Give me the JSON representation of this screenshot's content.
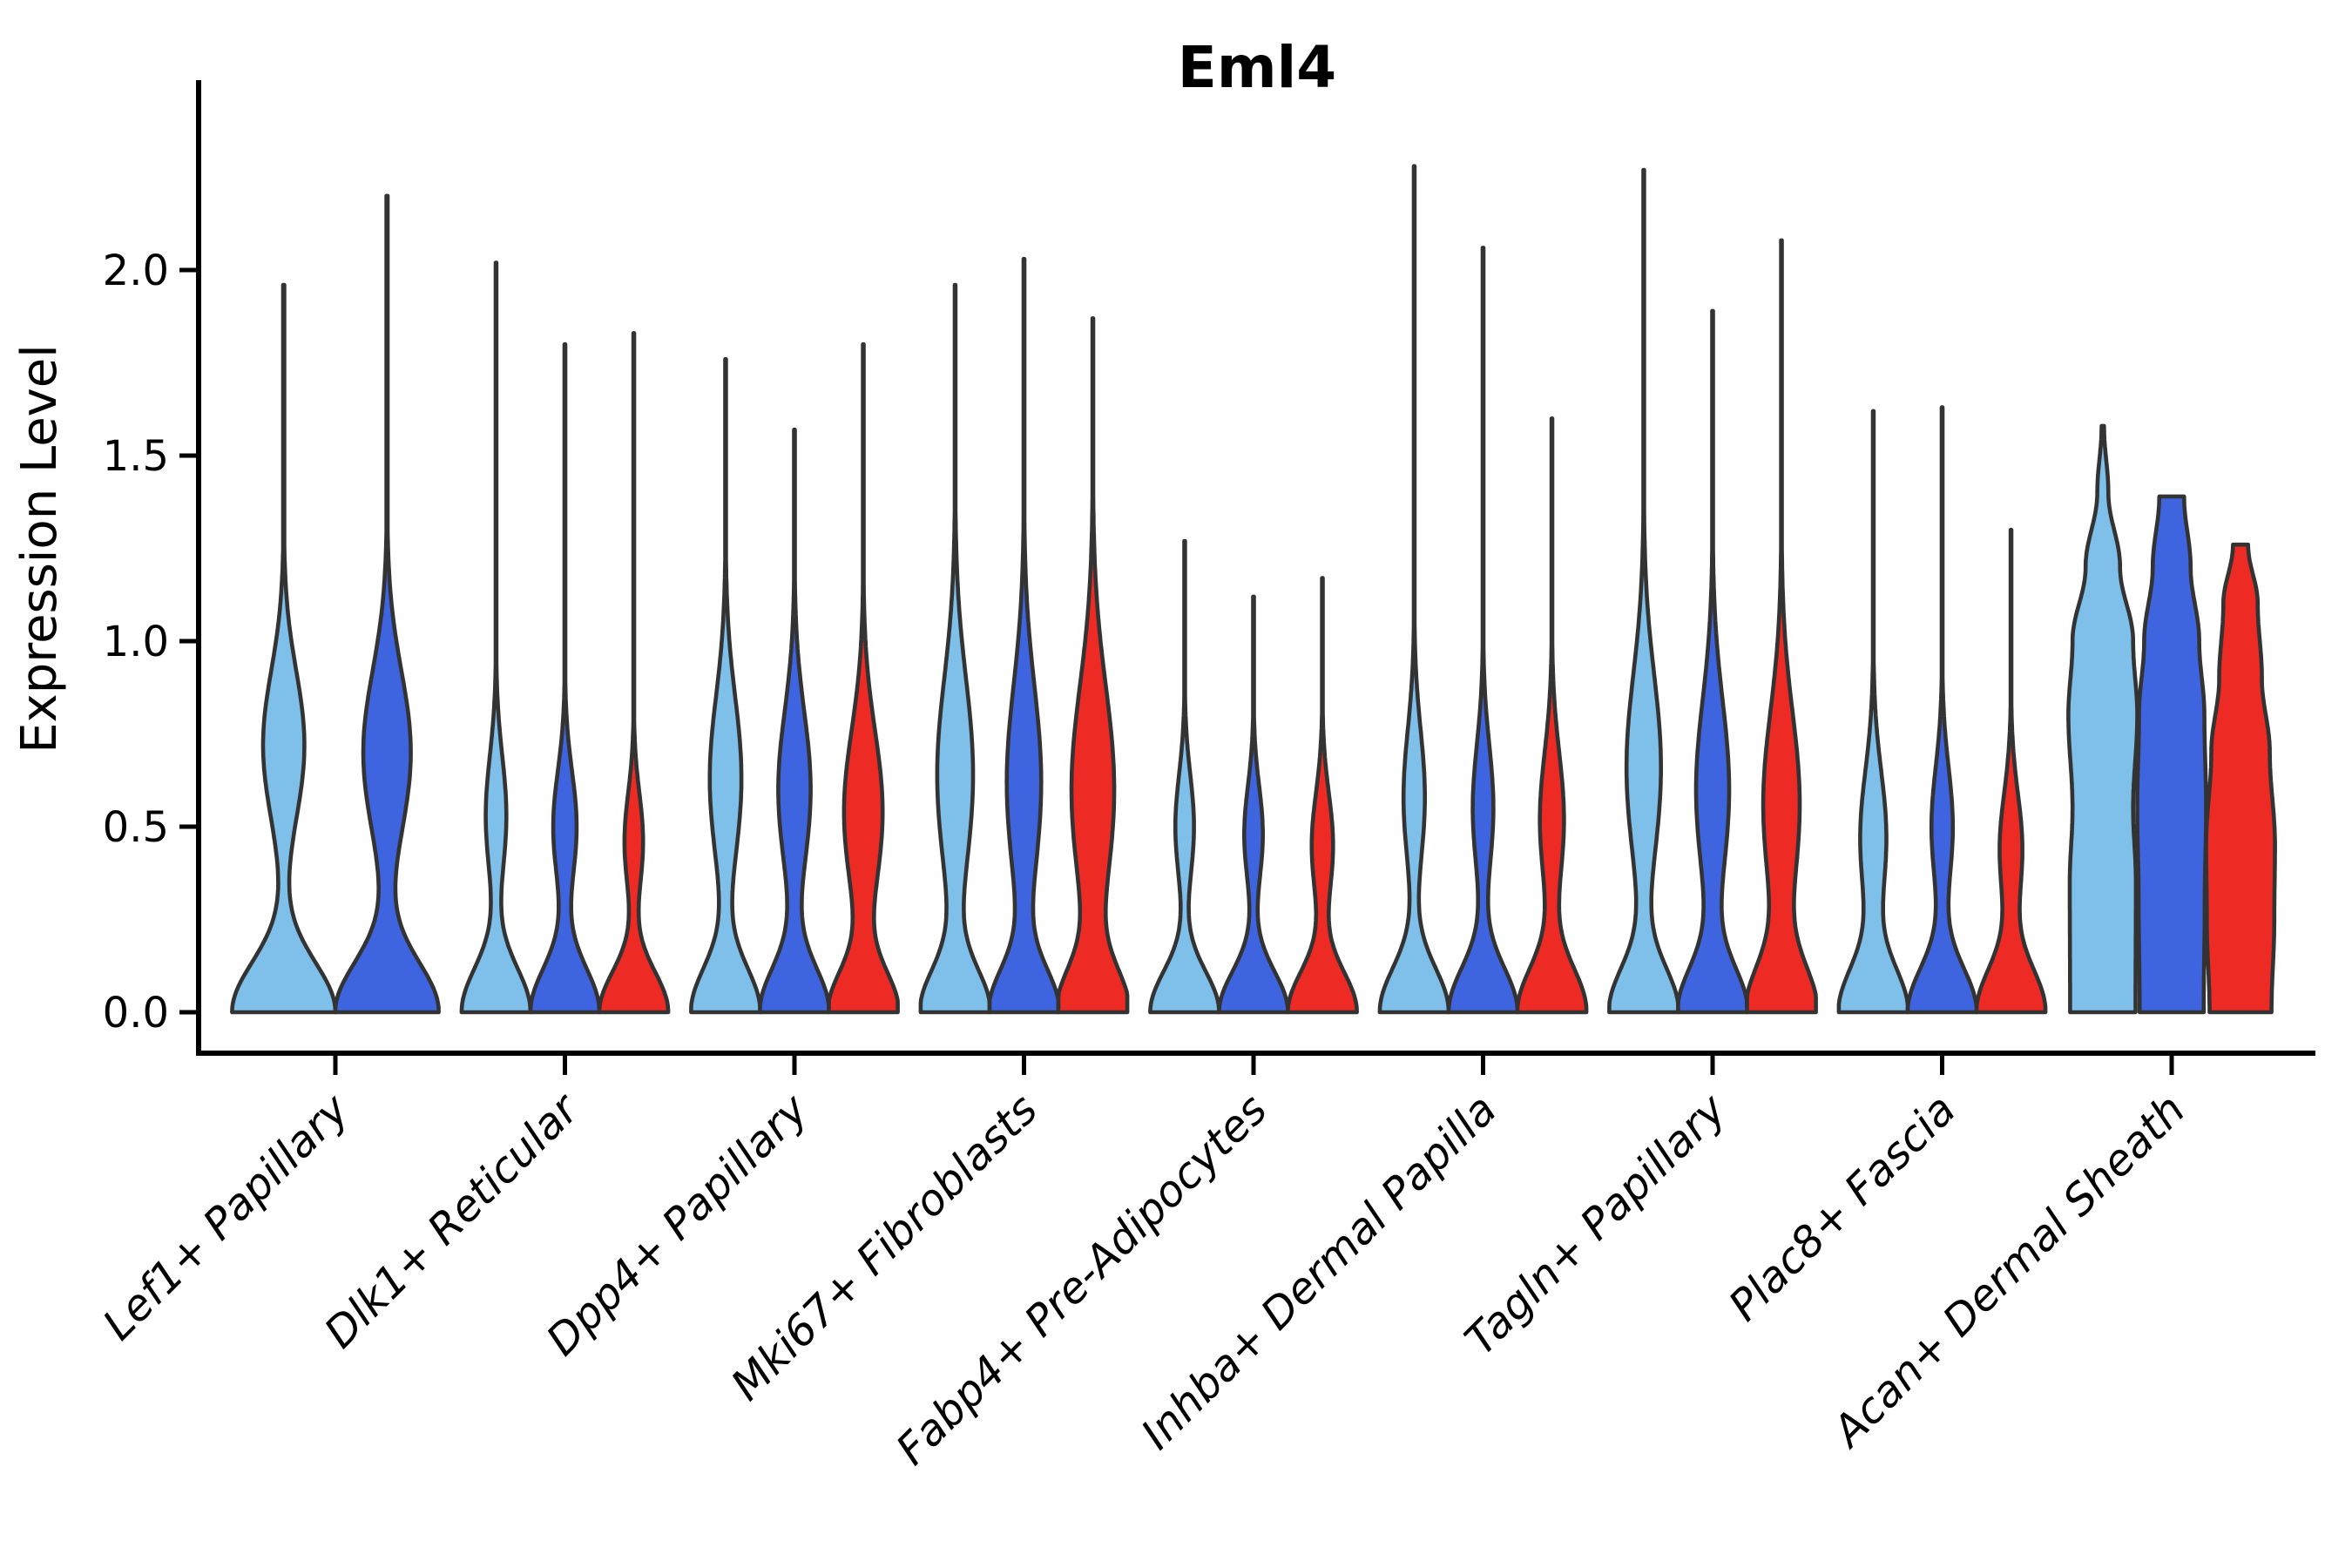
{
  "chart_data": {
    "type": "violin",
    "title": "Eml4",
    "ylabel": "Expression Level",
    "xlabel": "",
    "ylim": [
      0.0,
      2.45
    ],
    "ytick_labels": [
      "0.0",
      "0.5",
      "1.0",
      "1.5",
      "2.0"
    ],
    "ytick_values": [
      0.0,
      0.5,
      1.0,
      1.5,
      2.0
    ],
    "x_label_rotation_deg": 45,
    "grid": false,
    "legend": "none",
    "outline_color": "#333333",
    "axis_color": "#000000",
    "palette": {
      "lightblue": "#7EC0E9",
      "blue": "#3E64E0",
      "red": "#EE2A25"
    },
    "hue_order": [
      "lightblue",
      "blue",
      "red"
    ],
    "categories": [
      {
        "label": "Lef1+ Papillary",
        "violins": [
          {
            "color": "lightblue",
            "max": 1.96,
            "base_sigma": 0.135,
            "bumps": [
              [
                0.4,
                0.72,
                0.2
              ]
            ]
          },
          {
            "color": "blue",
            "max": 2.2,
            "base_sigma": 0.135,
            "bumps": [
              [
                0.46,
                0.7,
                0.22
              ]
            ]
          }
        ]
      },
      {
        "label": "Dlk1+ Reticular",
        "violins": [
          {
            "color": "lightblue",
            "max": 2.02,
            "base_sigma": 0.12,
            "bumps": [
              [
                0.3,
                0.53,
                0.16
              ]
            ]
          },
          {
            "color": "blue",
            "max": 1.8,
            "base_sigma": 0.12,
            "bumps": [
              [
                0.34,
                0.5,
                0.15
              ]
            ]
          },
          {
            "color": "red",
            "max": 1.83,
            "base_sigma": 0.11,
            "bumps": [
              [
                0.27,
                0.46,
                0.13
              ]
            ]
          }
        ]
      },
      {
        "label": "Dpp4+ Papillary",
        "violins": [
          {
            "color": "lightblue",
            "max": 1.76,
            "base_sigma": 0.12,
            "bumps": [
              [
                0.46,
                0.63,
                0.22
              ]
            ]
          },
          {
            "color": "blue",
            "max": 1.57,
            "base_sigma": 0.12,
            "bumps": [
              [
                0.47,
                0.6,
                0.21
              ]
            ]
          },
          {
            "color": "red",
            "max": 1.8,
            "base_sigma": 0.11,
            "bumps": [
              [
                0.56,
                0.54,
                0.22
              ]
            ]
          }
        ]
      },
      {
        "label": "Mki67+ Fibroblasts",
        "violins": [
          {
            "color": "lightblue",
            "max": 1.96,
            "base_sigma": 0.115,
            "bumps": [
              [
                0.52,
                0.64,
                0.26
              ]
            ]
          },
          {
            "color": "blue",
            "max": 2.03,
            "base_sigma": 0.115,
            "bumps": [
              [
                0.5,
                0.62,
                0.26
              ]
            ]
          },
          {
            "color": "red",
            "max": 1.87,
            "base_sigma": 0.115,
            "bumps": [
              [
                0.62,
                0.6,
                0.28
              ]
            ]
          }
        ]
      },
      {
        "label": "Fabp4+ Pre-Adipocytes",
        "violins": [
          {
            "color": "lightblue",
            "max": 1.27,
            "base_sigma": 0.11,
            "bumps": [
              [
                0.27,
                0.5,
                0.14
              ]
            ]
          },
          {
            "color": "blue",
            "max": 1.12,
            "base_sigma": 0.11,
            "bumps": [
              [
                0.27,
                0.48,
                0.13
              ]
            ]
          },
          {
            "color": "red",
            "max": 1.17,
            "base_sigma": 0.11,
            "bumps": [
              [
                0.31,
                0.45,
                0.14
              ]
            ]
          }
        ]
      },
      {
        "label": "Inhba+ Dermal Papilla",
        "violins": [
          {
            "color": "lightblue",
            "max": 2.28,
            "base_sigma": 0.12,
            "bumps": [
              [
                0.31,
                0.58,
                0.18
              ]
            ]
          },
          {
            "color": "blue",
            "max": 2.06,
            "base_sigma": 0.12,
            "bumps": [
              [
                0.3,
                0.55,
                0.17
              ]
            ]
          },
          {
            "color": "red",
            "max": 1.6,
            "base_sigma": 0.12,
            "bumps": [
              [
                0.35,
                0.52,
                0.18
              ]
            ]
          }
        ]
      },
      {
        "label": "Tagln+ Papillary",
        "violins": [
          {
            "color": "lightblue",
            "max": 2.27,
            "base_sigma": 0.12,
            "bumps": [
              [
                0.5,
                0.66,
                0.25
              ]
            ]
          },
          {
            "color": "blue",
            "max": 1.89,
            "base_sigma": 0.12,
            "bumps": [
              [
                0.48,
                0.6,
                0.24
              ]
            ]
          },
          {
            "color": "red",
            "max": 2.08,
            "base_sigma": 0.125,
            "bumps": [
              [
                0.53,
                0.56,
                0.25
              ]
            ]
          }
        ]
      },
      {
        "label": "Plac8+ Fascia",
        "violins": [
          {
            "color": "lightblue",
            "max": 1.62,
            "base_sigma": 0.12,
            "bumps": [
              [
                0.38,
                0.47,
                0.18
              ]
            ]
          },
          {
            "color": "blue",
            "max": 1.63,
            "base_sigma": 0.12,
            "bumps": [
              [
                0.31,
                0.5,
                0.16
              ]
            ]
          },
          {
            "color": "red",
            "max": 1.3,
            "base_sigma": 0.12,
            "bumps": [
              [
                0.33,
                0.44,
                0.15
              ]
            ]
          }
        ]
      },
      {
        "label": "Acan+ Dermal Sheath",
        "violins": [
          {
            "color": "lightblue",
            "max": 1.58,
            "pts": [
              [
                0,
                0.95
              ],
              [
                0.35,
                0.96
              ],
              [
                0.55,
                0.88
              ],
              [
                0.8,
                1.0
              ],
              [
                1.0,
                0.88
              ],
              [
                1.2,
                0.5
              ],
              [
                1.4,
                0.16
              ],
              [
                1.58,
                0.035
              ]
            ]
          },
          {
            "color": "blue",
            "max": 1.39,
            "pts": [
              [
                0,
                0.93
              ],
              [
                0.3,
                0.96
              ],
              [
                0.55,
                1.0
              ],
              [
                0.8,
                0.95
              ],
              [
                1.0,
                0.8
              ],
              [
                1.2,
                0.55
              ],
              [
                1.39,
                0.36
              ]
            ]
          },
          {
            "color": "red",
            "max": 1.26,
            "pts": [
              [
                0,
                0.9
              ],
              [
                0.25,
                0.98
              ],
              [
                0.45,
                1.0
              ],
              [
                0.7,
                0.85
              ],
              [
                0.9,
                0.62
              ],
              [
                1.1,
                0.5
              ],
              [
                1.26,
                0.22
              ]
            ]
          }
        ]
      }
    ]
  }
}
